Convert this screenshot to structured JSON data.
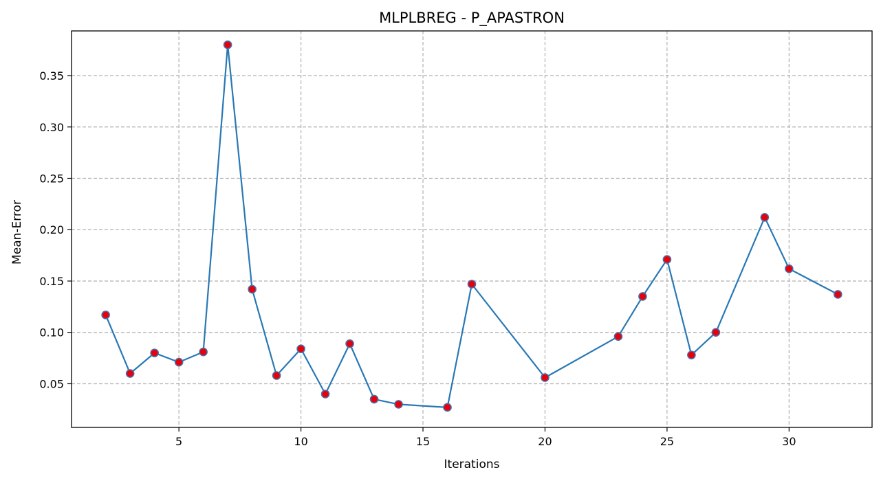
{
  "chart_data": {
    "type": "line",
    "title": "MLPLBREG - P_APASTRON",
    "xlabel": "Iterations",
    "ylabel": "Mean-Error",
    "xlim": [
      0.6,
      33.4
    ],
    "ylim": [
      0.0075,
      0.3935
    ],
    "xticks": [
      5,
      10,
      15,
      20,
      25,
      30
    ],
    "yticks": [
      0.05,
      0.1,
      0.15,
      0.2,
      0.25,
      0.3,
      0.35
    ],
    "ytick_labels": [
      "0.05",
      "0.10",
      "0.15",
      "0.20",
      "0.25",
      "0.30",
      "0.35"
    ],
    "grid": true,
    "line_color": "#2878b5",
    "marker_face_color": "#e8000b",
    "marker_edge_color": "#4a6ea8",
    "x": [
      2,
      3,
      4,
      5,
      6,
      7,
      8,
      9,
      10,
      11,
      12,
      13,
      14,
      16,
      17,
      20,
      23,
      24,
      25,
      26,
      27,
      29,
      30,
      32
    ],
    "y": [
      0.117,
      0.06,
      0.08,
      0.071,
      0.081,
      0.38,
      0.142,
      0.058,
      0.084,
      0.04,
      0.089,
      0.035,
      0.03,
      0.027,
      0.147,
      0.056,
      0.096,
      0.135,
      0.171,
      0.078,
      0.1,
      0.212,
      0.162,
      0.137
    ]
  }
}
